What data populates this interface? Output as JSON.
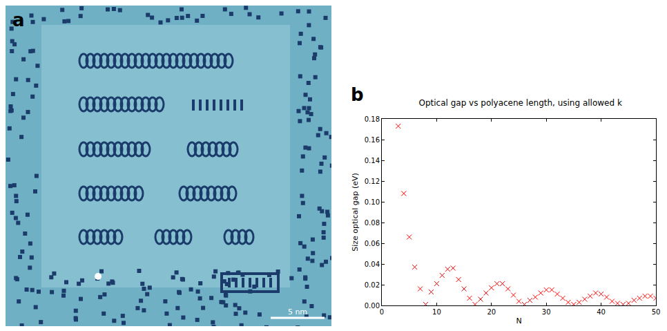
{
  "panel_labels": [
    "a",
    "b"
  ],
  "image": {
    "scale_bar": "5 nm"
  },
  "chart_data": {
    "type": "scatter",
    "title": "Optical gap vs polyacene length, using allowed k",
    "x_label": "N",
    "y_label": "Size optical gap (eV)",
    "x": [
      3,
      4,
      5,
      6,
      7,
      8,
      9,
      10,
      11,
      12,
      13,
      14,
      15,
      16,
      17,
      18,
      19,
      20,
      21,
      22,
      23,
      24,
      25,
      26,
      27,
      28,
      29,
      30,
      31,
      32,
      33,
      34,
      35,
      36,
      37,
      38,
      39,
      40,
      41,
      42,
      43,
      44,
      45,
      46,
      47,
      48,
      49,
      50
    ],
    "values": [
      0.173,
      0.108,
      0.066,
      0.037,
      0.016,
      0.001,
      0.013,
      0.021,
      0.029,
      0.035,
      0.036,
      0.025,
      0.016,
      0.007,
      0.001,
      0.006,
      0.012,
      0.017,
      0.021,
      0.021,
      0.016,
      0.01,
      0.004,
      0.001,
      0.005,
      0.008,
      0.012,
      0.015,
      0.015,
      0.011,
      0.007,
      0.003,
      0.001,
      0.003,
      0.006,
      0.009,
      0.012,
      0.011,
      0.008,
      0.004,
      0.002,
      0.001,
      0.002,
      0.005,
      0.007,
      0.009,
      0.009,
      0.007
    ],
    "color": "#ff0000",
    "marker": "x",
    "xlim": [
      0,
      50
    ],
    "xticks": [
      0,
      10,
      20,
      30,
      40,
      50
    ],
    "ylim": [
      0,
      0.18
    ],
    "yticks": [
      {
        "value": 0,
        "label": "0.00"
      },
      {
        "value": 0.02,
        "label": "0.02"
      },
      {
        "value": 0.04,
        "label": "0.04"
      },
      {
        "value": 0.06,
        "label": "0.06"
      },
      {
        "value": 0.08,
        "label": "0.08"
      },
      {
        "value": 0.1,
        "label": "0.10"
      },
      {
        "value": 0.12,
        "label": "0.12"
      },
      {
        "value": 0.14,
        "label": "0.14"
      },
      {
        "value": 0.16,
        "label": "0.16"
      },
      {
        "value": 0.18,
        "label": "0.18"
      }
    ],
    "grid": false
  }
}
